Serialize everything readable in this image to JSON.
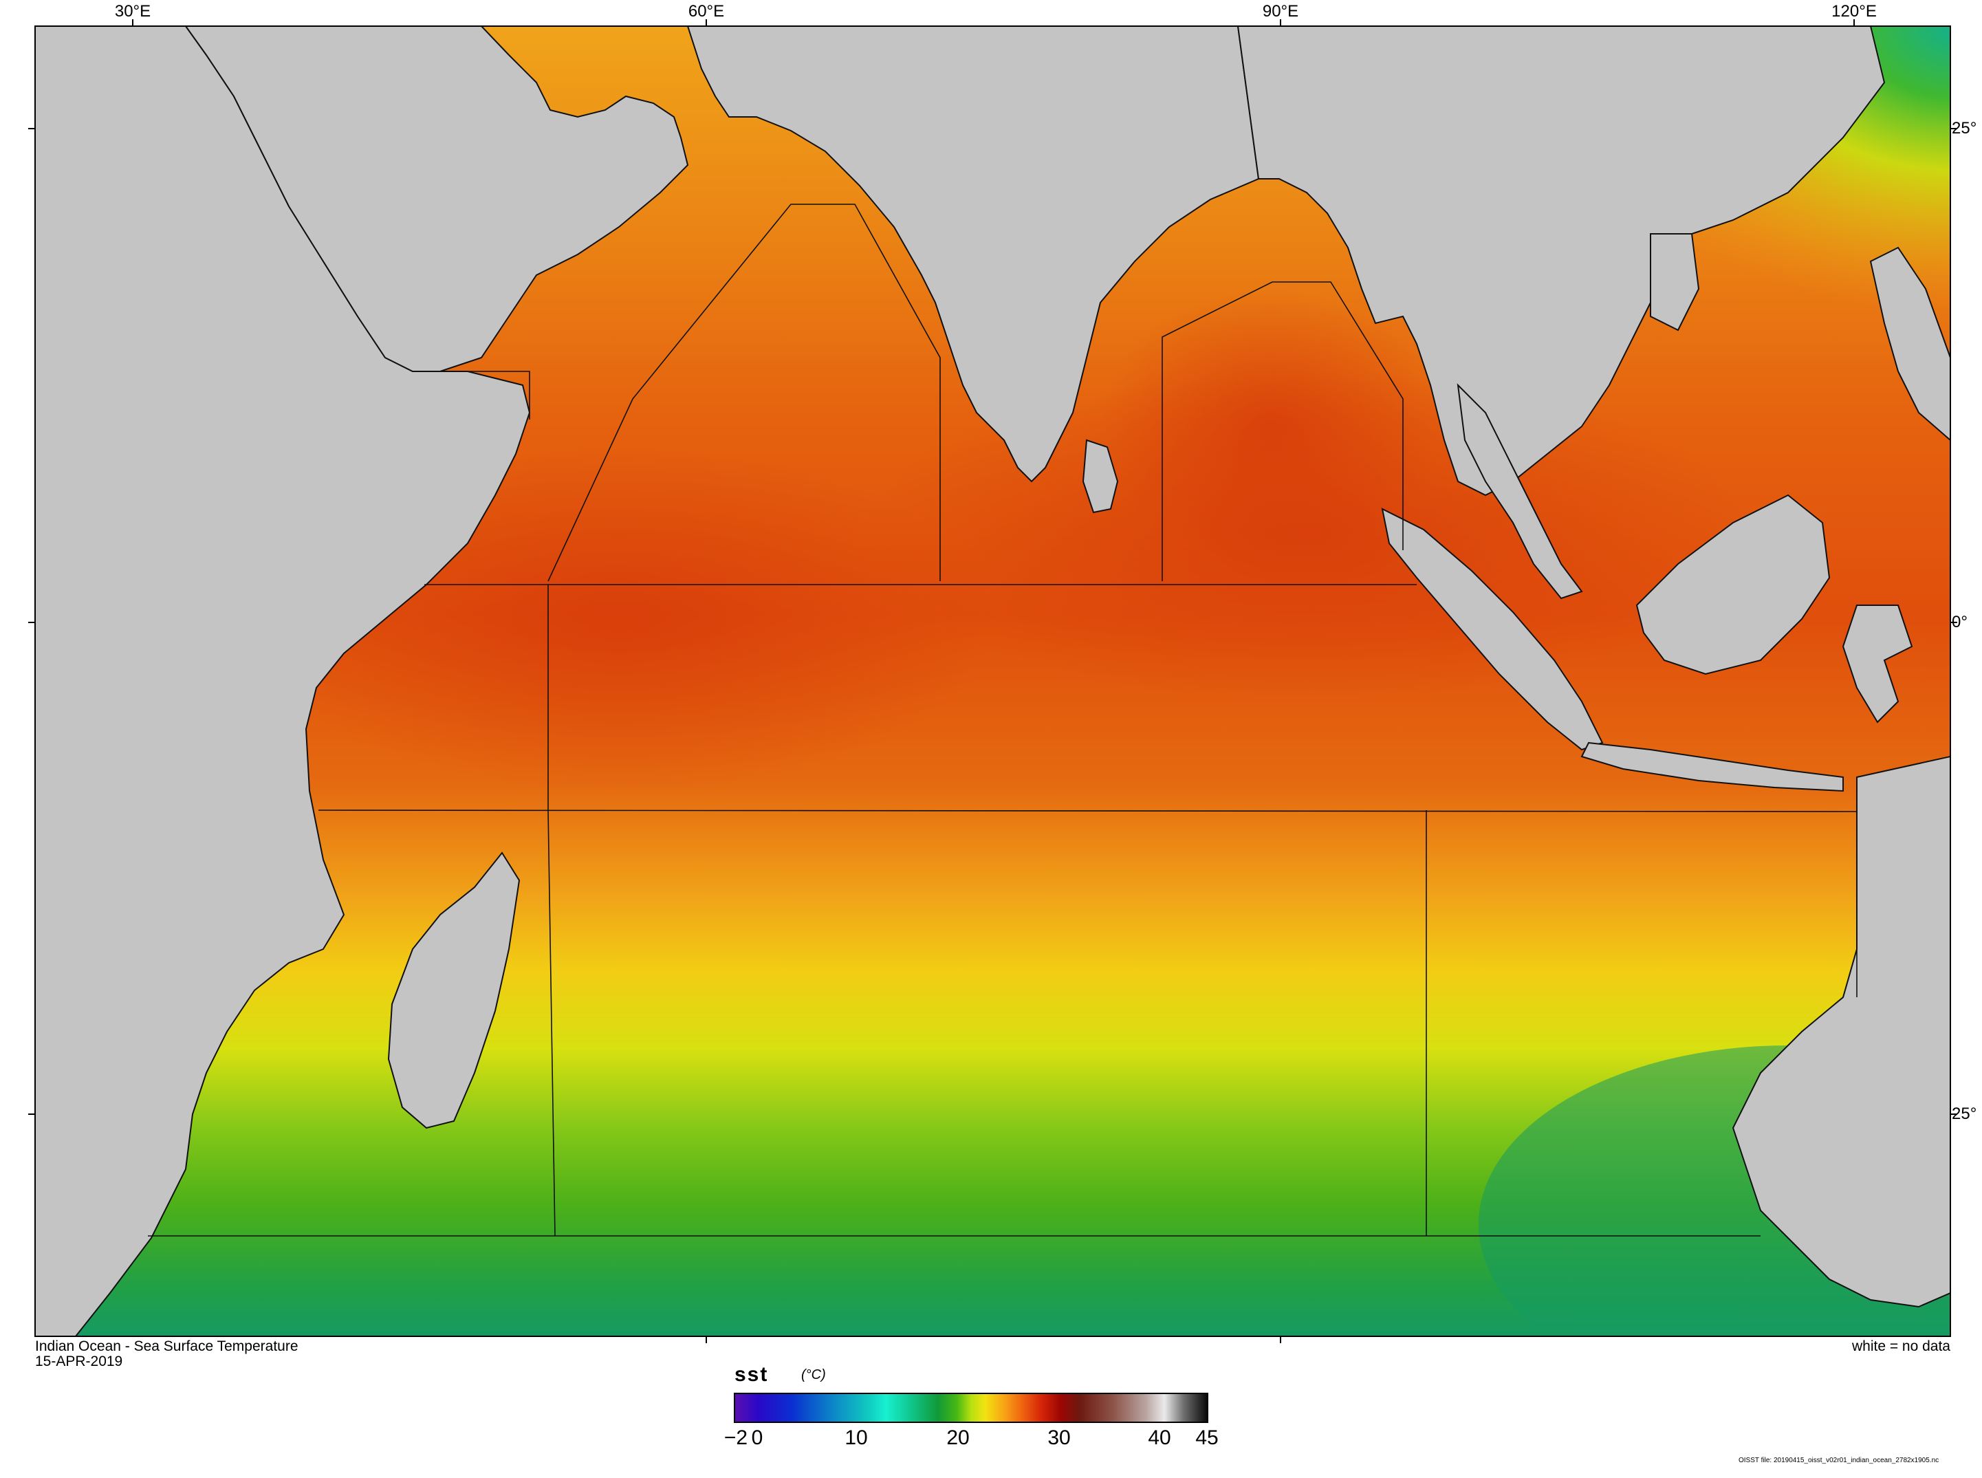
{
  "map": {
    "title": "Indian Ocean - Sea Surface Temperature",
    "date": "15-APR-2019",
    "no_data_note": "white = no data",
    "lon_labels": [
      "30°E",
      "60°E",
      "90°E",
      "120°E"
    ],
    "lat_labels": [
      "25°",
      "0°",
      "25°"
    ],
    "colors": {
      "land": "#c4c4c4",
      "warm_ocean": "#e96a14",
      "hot_ocean": "#d9400a",
      "mid_ocean": "#f2a818",
      "cool_ocean": "#e8e00c",
      "cold_ocean": "#56b414",
      "coldest_ocean": "#1a9c5a"
    }
  },
  "colorbar": {
    "variable": "sst",
    "units": "(°C)",
    "ticks": [
      "−2",
      "0",
      "10",
      "20",
      "30",
      "40",
      "45"
    ],
    "range": [
      -2,
      45
    ]
  },
  "credit": "OISST file: 20190415_oisst_v02r01_indian_ocean_2782x1905.nc"
}
